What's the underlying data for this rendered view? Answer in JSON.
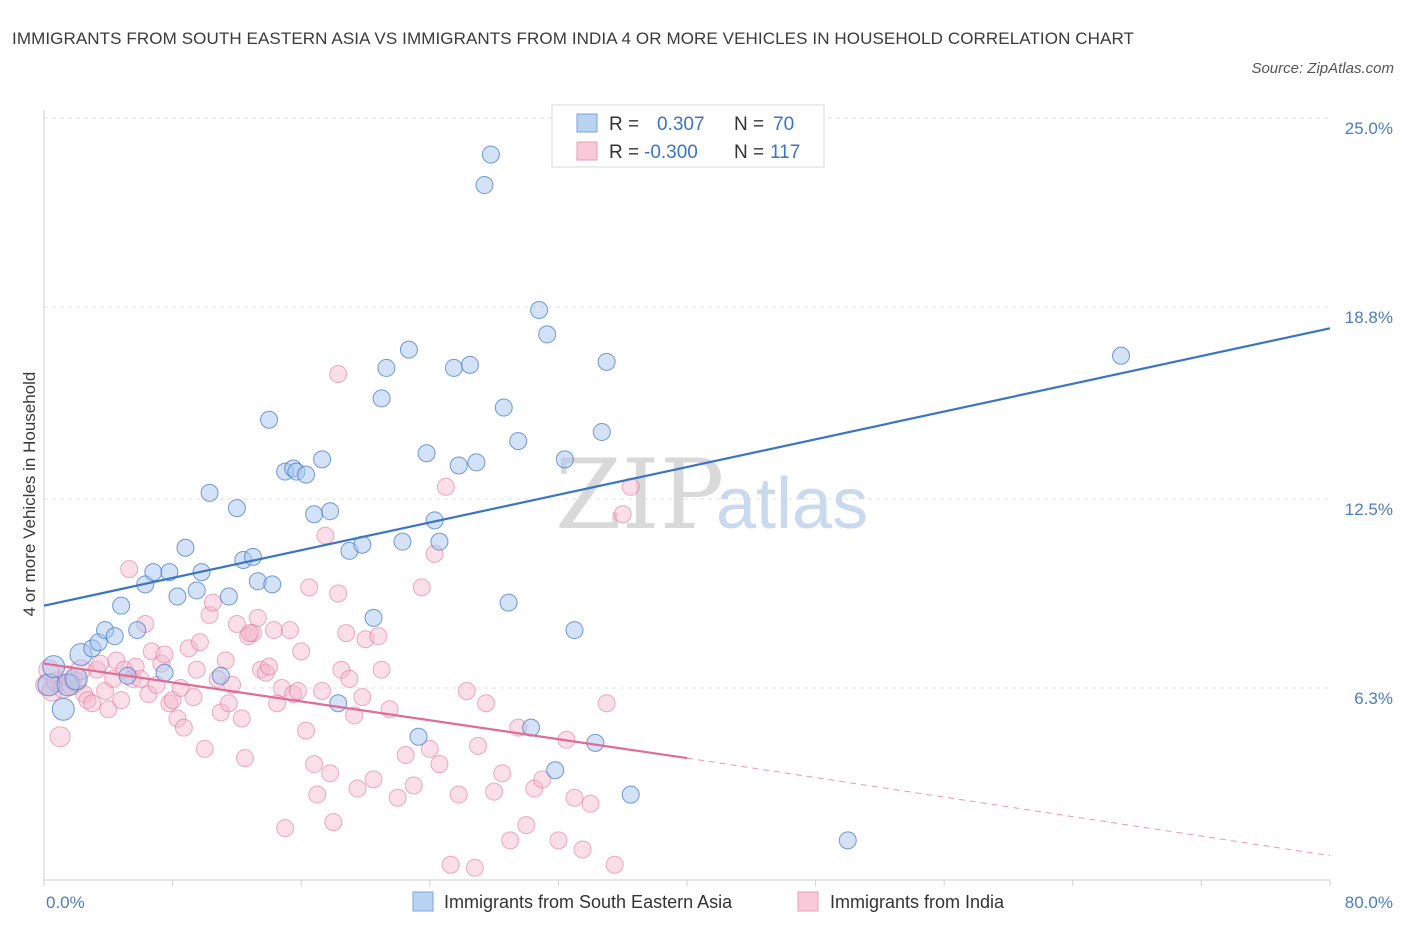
{
  "header": {
    "title": "IMMIGRANTS FROM SOUTH EASTERN ASIA VS IMMIGRANTS FROM INDIA 4 OR MORE VEHICLES IN HOUSEHOLD CORRELATION CHART",
    "source": "Source: ZipAtlas.com"
  },
  "watermark": {
    "part1": "ZIP",
    "part2": "atlas"
  },
  "legend": {
    "r_label": "R =",
    "n_label": "N =",
    "series1": {
      "r": "0.307",
      "n": "70"
    },
    "series2": {
      "r": "-0.300",
      "n": "117"
    }
  },
  "chart_data": {
    "type": "scatter",
    "title": "IMMIGRANTS FROM SOUTH EASTERN ASIA VS IMMIGRANTS FROM INDIA 4 OR MORE VEHICLES IN HOUSEHOLD CORRELATION CHART",
    "xlabel": "",
    "ylabel": "4 or more Vehicles in Household",
    "xlim": [
      0,
      80
    ],
    "ylim": [
      0,
      25
    ],
    "x_tick_labels": [
      "0.0%",
      "80.0%"
    ],
    "y_tick_labels": [
      "6.3%",
      "12.5%",
      "18.8%",
      "25.0%"
    ],
    "y_ticks": [
      6.3,
      12.5,
      18.8,
      25.0
    ],
    "grid": true,
    "legend_position": "top-center",
    "colors": {
      "series1": "#3b74c4",
      "series2": "#e06b96",
      "series1_fill": "#a9c6ef",
      "series2_fill": "#f4b9cc"
    },
    "series": [
      {
        "name": "Immigrants from South Eastern Asia",
        "r": 0.307,
        "n": 70,
        "trend": {
          "x": [
            0,
            80
          ],
          "y": [
            9.0,
            18.1
          ]
        },
        "points": [
          [
            0.3,
            6.4
          ],
          [
            0.6,
            7.0
          ],
          [
            1.2,
            5.6
          ],
          [
            1.5,
            6.4
          ],
          [
            2.0,
            6.6
          ],
          [
            2.3,
            7.4
          ],
          [
            3.0,
            7.6
          ],
          [
            3.4,
            7.8
          ],
          [
            3.8,
            8.2
          ],
          [
            4.4,
            8.0
          ],
          [
            4.8,
            9.0
          ],
          [
            5.2,
            6.7
          ],
          [
            5.8,
            8.2
          ],
          [
            6.3,
            9.7
          ],
          [
            6.8,
            10.1
          ],
          [
            7.5,
            6.8
          ],
          [
            7.8,
            10.1
          ],
          [
            8.3,
            9.3
          ],
          [
            8.8,
            10.9
          ],
          [
            9.5,
            9.5
          ],
          [
            9.8,
            10.1
          ],
          [
            10.3,
            12.7
          ],
          [
            11.0,
            6.7
          ],
          [
            11.5,
            9.3
          ],
          [
            12.0,
            12.2
          ],
          [
            12.4,
            10.5
          ],
          [
            13.0,
            10.6
          ],
          [
            13.3,
            9.8
          ],
          [
            14.2,
            9.7
          ],
          [
            14.0,
            15.1
          ],
          [
            15.0,
            13.4
          ],
          [
            15.5,
            13.5
          ],
          [
            15.7,
            13.4
          ],
          [
            16.3,
            13.3
          ],
          [
            16.8,
            12.0
          ],
          [
            17.3,
            13.8
          ],
          [
            17.8,
            12.1
          ],
          [
            18.3,
            5.8
          ],
          [
            19.0,
            10.8
          ],
          [
            19.8,
            11.0
          ],
          [
            20.5,
            8.6
          ],
          [
            21.0,
            15.8
          ],
          [
            21.3,
            16.8
          ],
          [
            22.3,
            11.1
          ],
          [
            22.7,
            17.4
          ],
          [
            23.3,
            4.7
          ],
          [
            23.8,
            14.0
          ],
          [
            24.3,
            11.8
          ],
          [
            24.6,
            11.1
          ],
          [
            25.5,
            16.8
          ],
          [
            25.8,
            13.6
          ],
          [
            26.5,
            16.9
          ],
          [
            26.9,
            13.7
          ],
          [
            27.4,
            22.8
          ],
          [
            27.8,
            23.8
          ],
          [
            28.6,
            15.5
          ],
          [
            28.9,
            9.1
          ],
          [
            29.5,
            14.4
          ],
          [
            30.3,
            5.0
          ],
          [
            30.8,
            18.7
          ],
          [
            31.3,
            17.9
          ],
          [
            31.8,
            3.6
          ],
          [
            32.4,
            13.8
          ],
          [
            33.0,
            8.2
          ],
          [
            34.3,
            4.5
          ],
          [
            34.7,
            14.7
          ],
          [
            35.0,
            17.0
          ],
          [
            36.5,
            2.8
          ],
          [
            50.0,
            1.3
          ],
          [
            67.0,
            17.2
          ]
        ]
      },
      {
        "name": "Immigrants from India",
        "r": -0.3,
        "n": 117,
        "trend": {
          "x": [
            0,
            40
          ],
          "y": [
            7.1,
            4.0
          ]
        },
        "trend_dashed": {
          "x": [
            40,
            80
          ],
          "y": [
            4.0,
            0.8
          ]
        },
        "points": [
          [
            0.1,
            6.4
          ],
          [
            0.3,
            6.9
          ],
          [
            0.5,
            6.2
          ],
          [
            0.8,
            6.5
          ],
          [
            1.0,
            4.7
          ],
          [
            1.2,
            6.3
          ],
          [
            1.5,
            6.7
          ],
          [
            1.7,
            6.4
          ],
          [
            2.0,
            6.5
          ],
          [
            2.3,
            6.9
          ],
          [
            2.5,
            6.1
          ],
          [
            2.7,
            5.9
          ],
          [
            3.0,
            5.8
          ],
          [
            3.3,
            6.9
          ],
          [
            3.5,
            7.1
          ],
          [
            3.8,
            6.2
          ],
          [
            4.0,
            5.6
          ],
          [
            4.3,
            6.6
          ],
          [
            4.5,
            7.2
          ],
          [
            4.8,
            5.9
          ],
          [
            5.0,
            6.9
          ],
          [
            5.3,
            10.2
          ],
          [
            5.5,
            6.6
          ],
          [
            5.7,
            7.0
          ],
          [
            6.0,
            6.6
          ],
          [
            6.3,
            8.4
          ],
          [
            6.5,
            6.1
          ],
          [
            6.7,
            7.5
          ],
          [
            7.0,
            6.4
          ],
          [
            7.3,
            7.1
          ],
          [
            7.5,
            7.4
          ],
          [
            7.8,
            5.8
          ],
          [
            8.0,
            5.9
          ],
          [
            8.3,
            5.3
          ],
          [
            8.5,
            6.3
          ],
          [
            8.7,
            5.0
          ],
          [
            9.0,
            7.6
          ],
          [
            9.3,
            6.0
          ],
          [
            9.5,
            6.9
          ],
          [
            9.7,
            7.8
          ],
          [
            10.0,
            4.3
          ],
          [
            10.3,
            8.7
          ],
          [
            10.5,
            9.1
          ],
          [
            10.8,
            6.6
          ],
          [
            11.0,
            5.5
          ],
          [
            11.3,
            7.2
          ],
          [
            11.5,
            5.8
          ],
          [
            11.7,
            6.4
          ],
          [
            12.0,
            8.4
          ],
          [
            12.3,
            5.3
          ],
          [
            12.5,
            4.0
          ],
          [
            12.7,
            8.0
          ],
          [
            13.0,
            8.1
          ],
          [
            13.3,
            8.6
          ],
          [
            13.5,
            6.9
          ],
          [
            13.8,
            6.8
          ],
          [
            14.0,
            7.0
          ],
          [
            14.3,
            8.2
          ],
          [
            14.5,
            5.8
          ],
          [
            14.8,
            6.3
          ],
          [
            15.0,
            1.7
          ],
          [
            15.3,
            8.2
          ],
          [
            15.5,
            6.1
          ],
          [
            15.8,
            6.2
          ],
          [
            16.0,
            7.5
          ],
          [
            16.3,
            4.9
          ],
          [
            16.5,
            9.6
          ],
          [
            16.8,
            3.8
          ],
          [
            17.0,
            2.8
          ],
          [
            17.3,
            6.2
          ],
          [
            17.5,
            11.3
          ],
          [
            17.8,
            3.5
          ],
          [
            18.0,
            1.9
          ],
          [
            18.3,
            9.4
          ],
          [
            18.5,
            6.9
          ],
          [
            18.8,
            8.1
          ],
          [
            19.0,
            6.6
          ],
          [
            19.3,
            5.4
          ],
          [
            19.5,
            3.0
          ],
          [
            19.8,
            6.0
          ],
          [
            20.0,
            7.9
          ],
          [
            20.5,
            3.3
          ],
          [
            21.0,
            6.9
          ],
          [
            21.5,
            5.6
          ],
          [
            22.0,
            2.7
          ],
          [
            22.5,
            4.1
          ],
          [
            23.0,
            3.1
          ],
          [
            23.5,
            9.6
          ],
          [
            24.0,
            4.3
          ],
          [
            24.3,
            10.7
          ],
          [
            24.6,
            3.8
          ],
          [
            25.0,
            12.9
          ],
          [
            25.3,
            0.5
          ],
          [
            25.8,
            2.8
          ],
          [
            26.3,
            6.2
          ],
          [
            26.8,
            0.4
          ],
          [
            27.0,
            4.4
          ],
          [
            27.5,
            5.8
          ],
          [
            28.0,
            2.9
          ],
          [
            28.5,
            3.5
          ],
          [
            29.0,
            1.3
          ],
          [
            29.5,
            5.0
          ],
          [
            30.0,
            1.8
          ],
          [
            30.5,
            3.0
          ],
          [
            31.0,
            3.3
          ],
          [
            32.0,
            1.3
          ],
          [
            32.5,
            4.6
          ],
          [
            33.0,
            2.7
          ],
          [
            33.5,
            1.0
          ],
          [
            34.0,
            2.5
          ],
          [
            35.0,
            5.8
          ],
          [
            35.5,
            0.5
          ],
          [
            36.0,
            12.0
          ],
          [
            36.5,
            12.9
          ],
          [
            18.3,
            16.6
          ],
          [
            12.8,
            8.1
          ],
          [
            20.8,
            8.0
          ]
        ]
      }
    ]
  },
  "bottom_legend": {
    "item1": "Immigrants from South Eastern Asia",
    "item2": "Immigrants from India"
  }
}
